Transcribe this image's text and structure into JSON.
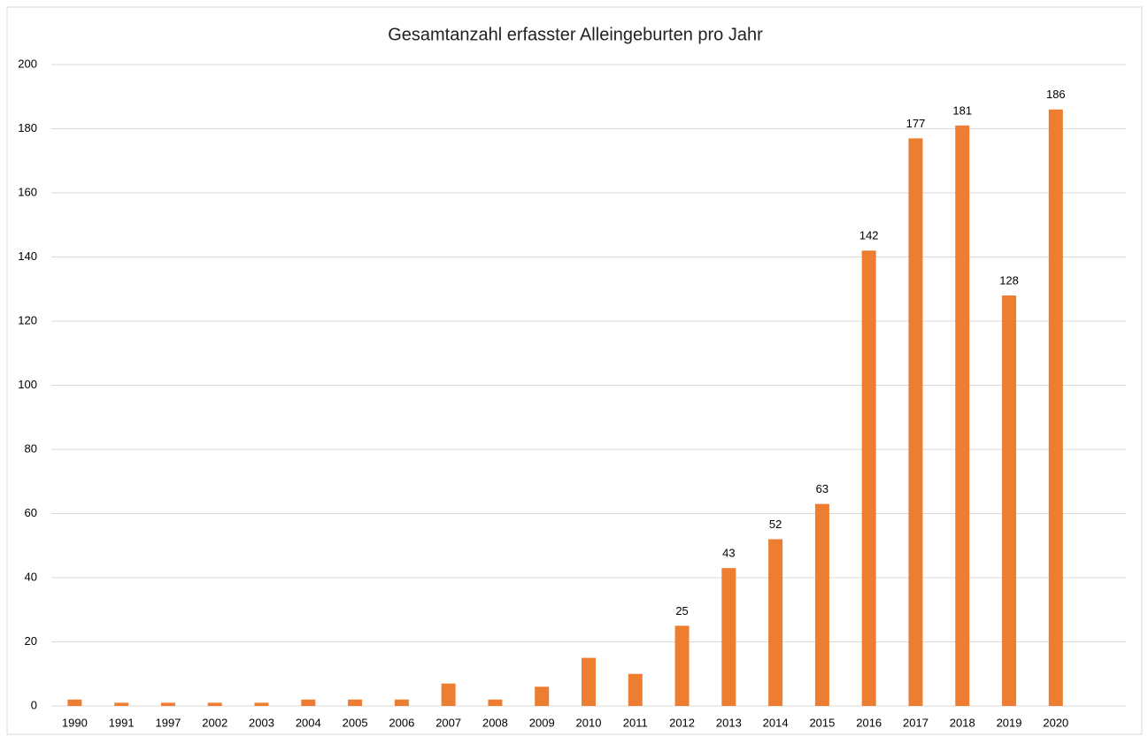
{
  "chart_data": {
    "type": "bar",
    "title": "Gesamtanzahl erfasster Alleingeburten pro Jahr",
    "categories": [
      "1990",
      "1991",
      "1997",
      "2002",
      "2003",
      "2004",
      "2005",
      "2006",
      "2007",
      "2008",
      "2009",
      "2010",
      "2011",
      "2012",
      "2013",
      "2014",
      "2015",
      "2016",
      "2017",
      "2018",
      "2019",
      "2020",
      null
    ],
    "values": [
      2,
      1,
      1,
      1,
      1,
      2,
      2,
      2,
      7,
      2,
      6,
      15,
      10,
      25,
      43,
      52,
      63,
      142,
      177,
      181,
      128,
      186,
      null
    ],
    "value_labels": [
      null,
      null,
      null,
      null,
      null,
      null,
      null,
      null,
      null,
      null,
      null,
      null,
      null,
      "25",
      "43",
      "52",
      "63",
      "142",
      "177",
      "181",
      "128",
      "186",
      null
    ],
    "color": "#ed7d31",
    "ylim": [
      0,
      200
    ],
    "yticks": [
      0,
      20,
      40,
      60,
      80,
      100,
      120,
      140,
      160,
      180,
      200
    ],
    "grid": true
  }
}
